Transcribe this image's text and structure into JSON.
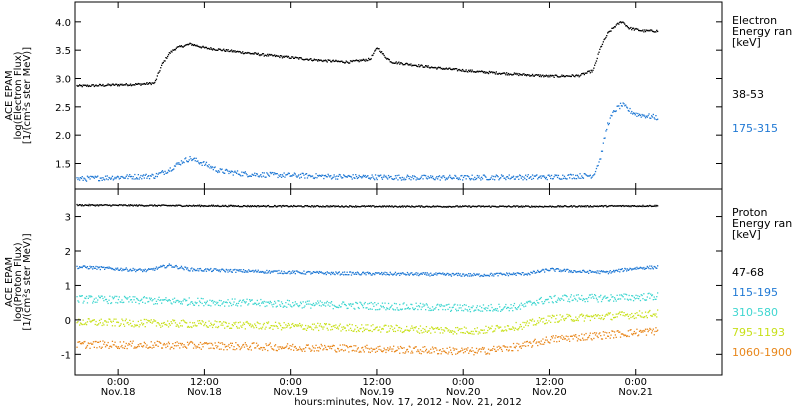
{
  "chart_data": [
    {
      "type": "scatter",
      "panel": "electron",
      "ylabel": [
        "ACE EPAM",
        "log(Electron Flux)",
        "[1/(cm²s ster MeV)]"
      ],
      "yticks": [
        "1.5",
        "2.0",
        "2.5",
        "3.0",
        "3.5",
        "4.0"
      ],
      "ylim": [
        1.05,
        4.35
      ],
      "legend_title": [
        "Electron",
        "Energy ran",
        "[keV]"
      ],
      "series": [
        {
          "name": "38-53",
          "color": "#000000",
          "points": [
            [
              -5,
              2.88
            ],
            [
              0,
              2.9
            ],
            [
              3,
              2.91
            ],
            [
              5,
              2.93
            ],
            [
              6,
              3.25
            ],
            [
              7,
              3.45
            ],
            [
              8,
              3.55
            ],
            [
              10,
              3.62
            ],
            [
              12,
              3.55
            ],
            [
              16,
              3.49
            ],
            [
              20,
              3.43
            ],
            [
              24,
              3.38
            ],
            [
              28,
              3.33
            ],
            [
              32,
              3.3
            ],
            [
              35,
              3.35
            ],
            [
              36,
              3.56
            ],
            [
              37,
              3.4
            ],
            [
              38,
              3.3
            ],
            [
              44,
              3.2
            ],
            [
              50,
              3.13
            ],
            [
              56,
              3.08
            ],
            [
              60,
              3.05
            ],
            [
              64,
              3.06
            ],
            [
              66,
              3.15
            ],
            [
              67,
              3.55
            ],
            [
              68,
              3.8
            ],
            [
              69,
              3.93
            ],
            [
              70,
              4.02
            ],
            [
              71,
              3.9
            ],
            [
              73,
              3.85
            ],
            [
              75,
              3.85
            ]
          ]
        },
        {
          "name": "175-315",
          "color": "#1f78d4",
          "points": [
            [
              -5,
              1.24
            ],
            [
              0,
              1.27
            ],
            [
              5,
              1.29
            ],
            [
              7,
              1.4
            ],
            [
              9,
              1.56
            ],
            [
              10,
              1.6
            ],
            [
              12,
              1.5
            ],
            [
              14,
              1.38
            ],
            [
              18,
              1.32
            ],
            [
              24,
              1.3
            ],
            [
              30,
              1.28
            ],
            [
              36,
              1.27
            ],
            [
              42,
              1.26
            ],
            [
              48,
              1.26
            ],
            [
              54,
              1.27
            ],
            [
              60,
              1.27
            ],
            [
              66,
              1.3
            ],
            [
              67,
              1.6
            ],
            [
              68,
              2.2
            ],
            [
              69,
              2.45
            ],
            [
              70,
              2.55
            ],
            [
              71,
              2.45
            ],
            [
              72,
              2.38
            ],
            [
              75,
              2.32
            ]
          ]
        }
      ]
    },
    {
      "type": "scatter",
      "panel": "proton",
      "ylabel": [
        "ACE EPAM",
        "log(Proton Flux)",
        "[1/(cm²s ster MeV)]"
      ],
      "yticks": [
        "-1",
        "0",
        "1",
        "2",
        "3"
      ],
      "ylim": [
        -1.6,
        3.8
      ],
      "legend_title": [
        "Proton",
        "Energy ran",
        "[keV]"
      ],
      "series": [
        {
          "name": "47-68",
          "color": "#000000",
          "points": [
            [
              -5,
              3.35
            ],
            [
              20,
              3.32
            ],
            [
              40,
              3.31
            ],
            [
              60,
              3.31
            ],
            [
              75,
              3.33
            ]
          ]
        },
        {
          "name": "115-195",
          "color": "#1f78d4",
          "points": [
            [
              -5,
              1.55
            ],
            [
              4,
              1.45
            ],
            [
              7,
              1.6
            ],
            [
              10,
              1.48
            ],
            [
              20,
              1.42
            ],
            [
              30,
              1.37
            ],
            [
              40,
              1.35
            ],
            [
              50,
              1.32
            ],
            [
              57,
              1.36
            ],
            [
              60,
              1.48
            ],
            [
              64,
              1.42
            ],
            [
              68,
              1.4
            ],
            [
              72,
              1.52
            ],
            [
              75,
              1.55
            ]
          ]
        },
        {
          "name": "310-580",
          "color": "#3fd6d0",
          "points": [
            [
              -5,
              0.62
            ],
            [
              10,
              0.55
            ],
            [
              20,
              0.5
            ],
            [
              30,
              0.45
            ],
            [
              40,
              0.4
            ],
            [
              50,
              0.35
            ],
            [
              56,
              0.4
            ],
            [
              58,
              0.55
            ],
            [
              62,
              0.65
            ],
            [
              68,
              0.65
            ],
            [
              75,
              0.7
            ]
          ]
        },
        {
          "name": "795-1193",
          "color": "#c8e01a",
          "points": [
            [
              -5,
              -0.05
            ],
            [
              10,
              -0.1
            ],
            [
              20,
              -0.15
            ],
            [
              30,
              -0.2
            ],
            [
              40,
              -0.25
            ],
            [
              50,
              -0.3
            ],
            [
              56,
              -0.15
            ],
            [
              60,
              0.05
            ],
            [
              66,
              0.1
            ],
            [
              70,
              0.15
            ],
            [
              75,
              0.2
            ]
          ]
        },
        {
          "name": "1060-1900",
          "color": "#e8861a",
          "points": [
            [
              -5,
              -0.7
            ],
            [
              10,
              -0.72
            ],
            [
              20,
              -0.76
            ],
            [
              30,
              -0.8
            ],
            [
              40,
              -0.85
            ],
            [
              50,
              -0.9
            ],
            [
              56,
              -0.75
            ],
            [
              60,
              -0.55
            ],
            [
              66,
              -0.45
            ],
            [
              70,
              -0.38
            ],
            [
              75,
              -0.3
            ]
          ]
        }
      ]
    }
  ],
  "x_axis": {
    "range_hours": [
      -6,
      84
    ],
    "ticks": [
      {
        "h": 0,
        "time": "0:00",
        "date": "Nov.18"
      },
      {
        "h": 12,
        "time": "12:00",
        "date": "Nov.18"
      },
      {
        "h": 24,
        "time": "0:00",
        "date": "Nov.19"
      },
      {
        "h": 36,
        "time": "12:00",
        "date": "Nov.19"
      },
      {
        "h": 48,
        "time": "0:00",
        "date": "Nov.20"
      },
      {
        "h": 60,
        "time": "12:00",
        "date": "Nov.20"
      },
      {
        "h": 72,
        "time": "0:00",
        "date": "Nov.21"
      }
    ],
    "label": "hours:minutes, Nov. 17, 2012 - Nov. 21, 2012"
  }
}
